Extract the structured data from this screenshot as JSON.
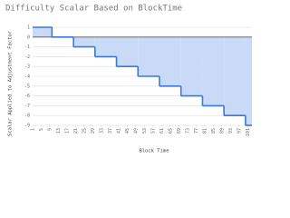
{
  "chart_data": {
    "type": "step",
    "title": "Difficulty Scalar Based on BlockTime",
    "x_label": "Block Time",
    "y_label": "Scalar Applied to Adjustment Factor",
    "x": [
      1,
      10,
      20,
      30,
      40,
      50,
      60,
      70,
      80,
      90,
      100,
      103
    ],
    "values": [
      1,
      0,
      -1,
      -2,
      -3,
      -4,
      -5,
      -6,
      -7,
      -8,
      -9,
      -9
    ],
    "color": "#3c78d8",
    "fill": "#c9daf8",
    "xlim": [
      1,
      103
    ],
    "xticks": [
      1,
      5,
      9,
      13,
      17,
      21,
      25,
      29,
      33,
      37,
      41,
      45,
      49,
      53,
      57,
      61,
      65,
      69,
      73,
      77,
      81,
      85,
      89,
      93,
      97,
      101
    ],
    "ylim": [
      -9,
      1
    ],
    "yticks": [
      1,
      0,
      -1,
      -2,
      -3,
      -4,
      -5,
      -6,
      -7,
      -8,
      -9
    ],
    "grid": true
  }
}
